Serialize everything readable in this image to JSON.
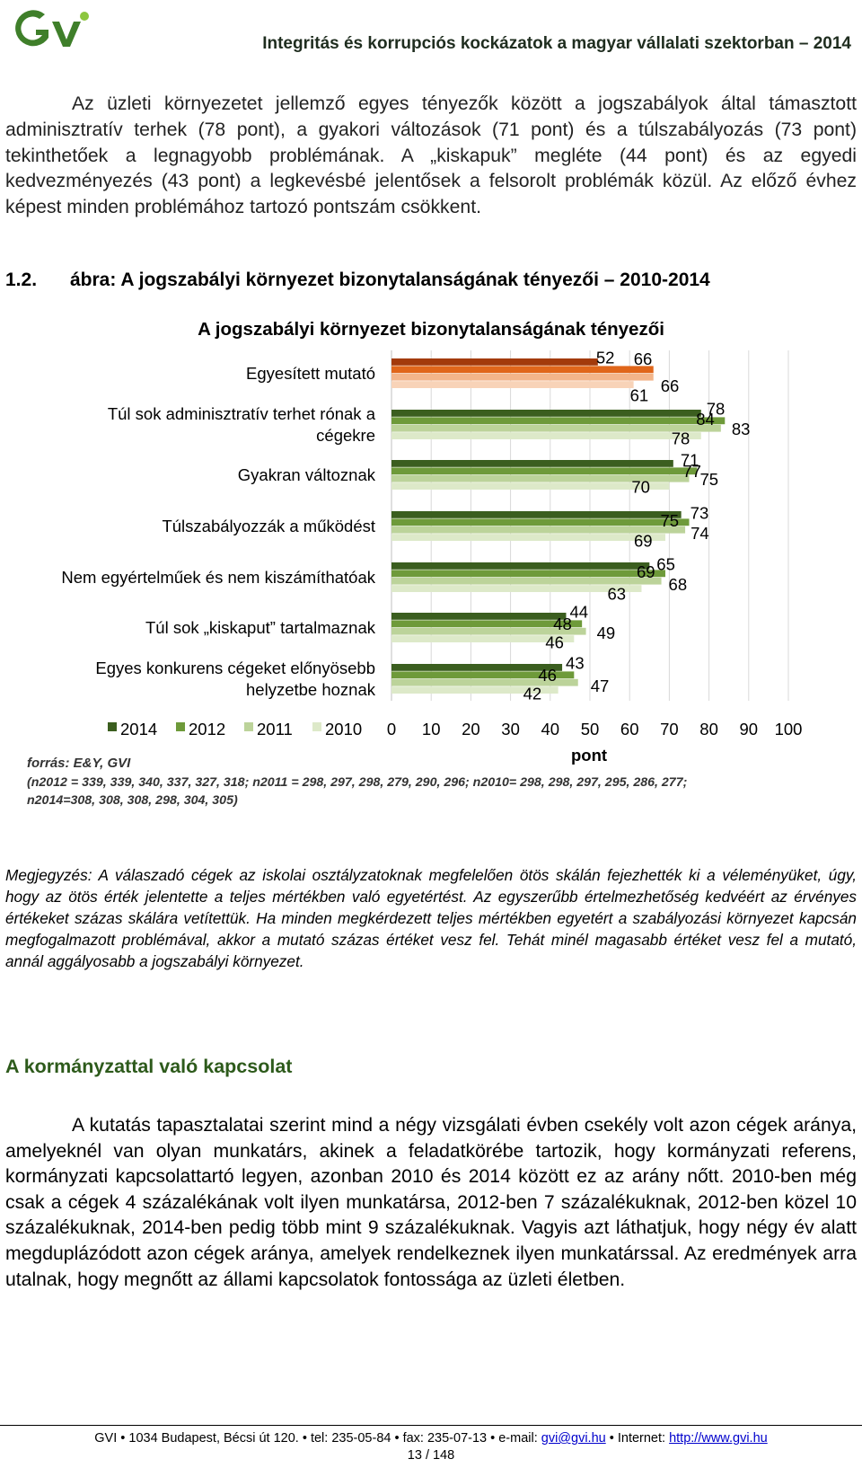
{
  "header": {
    "title": "Integritás és korrupciós kockázatok a magyar vállalati szektorban – 2014",
    "logo_text": "GVI"
  },
  "intro_paragraph": "Az üzleti környezetet jellemző egyes tényezők között a jogszabályok által támasztott adminisztratív terhek (78 pont), a gyakori változások (71 pont) és a túlszabályozás (73 pont) tekinthetőek a legnagyobb problémának. A „kiskapuk” megléte (44 pont) és az egyedi kedvezményezés (43 pont) a legkevésbé jelentősek a felsorolt problémák közül. Az előző évhez képest minden problémához tartozó pontszám csökkent.",
  "figure": {
    "number": "1.2.",
    "caption": "ábra: A jogszabályi környezet bizonytalanságának tényezői – 2010-2014",
    "source": "forrás: E&Y, GVI",
    "sample_line1": "(n2012 = 339, 339, 340, 337, 327, 318; n2011 = 298, 297, 298, 279, 290, 296; n2010= 298, 298, 297, 295, 286, 277;",
    "sample_line2": "n2014=308, 308, 308, 298, 304, 305)"
  },
  "chart_data": {
    "type": "bar",
    "orientation": "horizontal",
    "title": "A jogszabályi környezet bizonytalanságának tényezői",
    "xlabel": "pont",
    "ylabel": "",
    "xlim": [
      0,
      100
    ],
    "xticks": [
      0,
      10,
      20,
      30,
      40,
      50,
      60,
      70,
      80,
      90,
      100
    ],
    "grid": true,
    "legend_position": "bottom-left",
    "categories": [
      [
        "Egyesített mutató"
      ],
      [
        "Túl sok adminisztratív terhet rónak a",
        "cégekre"
      ],
      [
        "Gyakran változnak"
      ],
      [
        "Túlszabályozzák a működést"
      ],
      [
        "Nem egyértelműek és nem kiszámíthatóak"
      ],
      [
        "Túl sok „kiskaput” tartalmaznak"
      ],
      [
        "Egyes konkurens cégeket előnyösebb",
        "helyzetbe hoznak"
      ]
    ],
    "series": [
      {
        "name": "2014",
        "values": [
          null,
          78,
          71,
          73,
          65,
          44,
          43
        ]
      },
      {
        "name": "2012",
        "values": [
          null,
          84,
          77,
          75,
          69,
          48,
          46
        ]
      },
      {
        "name": "2011",
        "values": [
          null,
          83,
          75,
          74,
          68,
          49,
          47
        ]
      },
      {
        "name": "2010",
        "values": [
          null,
          78,
          70,
          69,
          63,
          46,
          42
        ]
      }
    ],
    "composite_series": [
      {
        "name": "2014",
        "values": [
          52
        ]
      },
      {
        "name": "2012",
        "values": [
          66
        ]
      },
      {
        "name": "2011",
        "values": [
          66
        ]
      },
      {
        "name": "2010",
        "values": [
          61
        ]
      }
    ],
    "colors": {
      "2014": "#3b5e1f",
      "2012": "#6e9a3a",
      "2011": "#bcd39a",
      "2010": "#dde9c9",
      "composite_2014": "#a33a0b",
      "composite_2012": "#e0661a",
      "composite_2011": "#f3b58a",
      "composite_2010": "#f8d3b8",
      "grid": "#d9d9d9"
    }
  },
  "note": "Megjegyzés: A válaszadó cégek az iskolai osztályzatoknak megfelelően ötös skálán fejezhették ki a véleményüket, úgy, hogy az ötös érték jelentette a teljes mértékben való egyetértést. Az egyszerűbb értelmezhetőség kedvéért az érvényes értékeket százas skálára vetítettük. Ha minden megkérdezett teljes mértékben egyetért a szabályozási környezet kapcsán megfogalmazott problémával, akkor a mutató százas értéket vesz fel. Tehát minél magasabb értéket vesz fel a mutató, annál aggályosabb a jogszabályi környezet.",
  "section": {
    "title": "A kormányzattal való kapcsolat",
    "paragraph": "A kutatás tapasztalatai szerint mind a négy vizsgálati évben csekély volt azon cégek aránya, amelyeknél van olyan munkatárs, akinek a feladatkörébe tartozik, hogy kormányzati referens, kormányzati kapcsolattartó legyen, azonban 2010 és 2014 között ez az arány nőtt. 2010-ben még csak a cégek 4 százalékának volt ilyen munkatársa, 2012-ben 7 százalékuknak, 2012-ben közel 10 százalékuknak, 2014-ben pedig több mint 9 százalékuknak. Vagyis azt láthatjuk, hogy négy év alatt megduplázódott azon cégek aránya, amelyek rendelkeznek ilyen munkatárssal. Az eredmények arra utalnak, hogy megnőtt az állami kapcsolatok fontossága az üzleti életben."
  },
  "footer": {
    "text_prefix": "GVI • 1034 Budapest, Bécsi út 120. • tel: 235-05-84 • fax: 235-07-13 • e-mail: ",
    "email": "gvi@gvi.hu",
    "text_middle": " • Internet: ",
    "website": "http://www.gvi.hu",
    "page": "13 / 148"
  }
}
